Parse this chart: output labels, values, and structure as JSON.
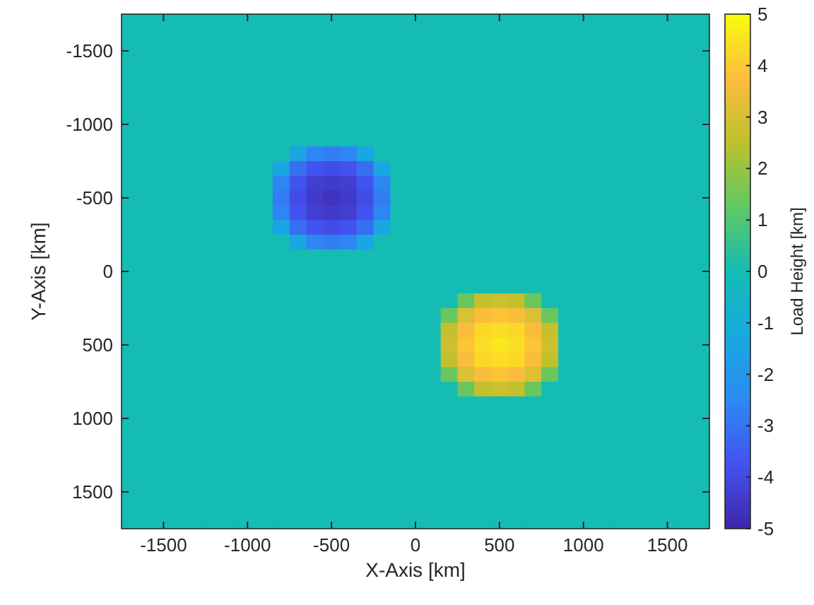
{
  "chart_data": {
    "type": "heatmap",
    "xlabel": "X-Axis [km]",
    "ylabel": "Y-Axis [km]",
    "clabel": "Load Height [km]",
    "x": [
      -1700,
      -1600,
      -1500,
      -1400,
      -1300,
      -1200,
      -1100,
      -1000,
      -900,
      -800,
      -700,
      -600,
      -500,
      -400,
      -300,
      -200,
      -100,
      0,
      100,
      200,
      300,
      400,
      500,
      600,
      700,
      800,
      900,
      1000,
      1100,
      1200,
      1300,
      1400,
      1500,
      1600,
      1700
    ],
    "y": [
      -1700,
      -1600,
      -1500,
      -1400,
      -1300,
      -1200,
      -1100,
      -1000,
      -900,
      -800,
      -700,
      -600,
      -500,
      -400,
      -300,
      -200,
      -100,
      0,
      100,
      200,
      300,
      400,
      500,
      600,
      700,
      800,
      900,
      1000,
      1100,
      1200,
      1300,
      1400,
      1500,
      1600,
      1700
    ],
    "xlim": [
      -1750,
      1750
    ],
    "ylim": [
      1750,
      -1750
    ],
    "xticks": [
      -1500,
      -1000,
      -500,
      0,
      500,
      1000,
      1500
    ],
    "yticks": [
      -1500,
      -1000,
      -500,
      0,
      500,
      1000,
      1500
    ],
    "clim": [
      -5,
      5
    ],
    "cticks": [
      -5,
      -4,
      -3,
      -2,
      -1,
      0,
      1,
      2,
      3,
      4,
      5
    ],
    "cells": [
      [
        0,
        0,
        0,
        0,
        0,
        0,
        0,
        0,
        0,
        0,
        0,
        0,
        0,
        0,
        0,
        0,
        0,
        0,
        0,
        0,
        0,
        0,
        0,
        0,
        0,
        0,
        0,
        0,
        0,
        0,
        0,
        0,
        0,
        0,
        0
      ],
      [
        0,
        0,
        0,
        0,
        0,
        0,
        0,
        0,
        0,
        0,
        0,
        0,
        0,
        0,
        0,
        0,
        0,
        0,
        0,
        0,
        0,
        0,
        0,
        0,
        0,
        0,
        0,
        0,
        0,
        0,
        0,
        0,
        0,
        0,
        0
      ],
      [
        0,
        0,
        0,
        0,
        0,
        0,
        0,
        0,
        0,
        0,
        0,
        0,
        0,
        0,
        0,
        0,
        0,
        0,
        0,
        0,
        0,
        0,
        0,
        0,
        0,
        0,
        0,
        0,
        0,
        0,
        0,
        0,
        0,
        0,
        0
      ],
      [
        0,
        0,
        0,
        0,
        0,
        0,
        0,
        0,
        0,
        0,
        0,
        0,
        0,
        0,
        0,
        0,
        0,
        0,
        0,
        0,
        0,
        0,
        0,
        0,
        0,
        0,
        0,
        0,
        0,
        0,
        0,
        0,
        0,
        0,
        0
      ],
      [
        0,
        0,
        0,
        0,
        0,
        0,
        0,
        0,
        0,
        0,
        0,
        0,
        0,
        0,
        0,
        0,
        0,
        0,
        0,
        0,
        0,
        0,
        0,
        0,
        0,
        0,
        0,
        0,
        0,
        0,
        0,
        0,
        0,
        0,
        0
      ],
      [
        0,
        0,
        0,
        0,
        0,
        0,
        0,
        0,
        0,
        0,
        0,
        0,
        0,
        0,
        0,
        0,
        0,
        0,
        0,
        0,
        0,
        0,
        0,
        0,
        0,
        0,
        0,
        0,
        0,
        0,
        0,
        0,
        0,
        0,
        0
      ],
      [
        0,
        0,
        0,
        0,
        0,
        0,
        0,
        0,
        0,
        0,
        0,
        0,
        0,
        0,
        0,
        0,
        0,
        0,
        0,
        0,
        0,
        0,
        0,
        0,
        0,
        0,
        0,
        0,
        0,
        0,
        0,
        0,
        0,
        0,
        0
      ],
      [
        0,
        0,
        0,
        0,
        0,
        0,
        0,
        0,
        0,
        0,
        0,
        0,
        0,
        0,
        0,
        0,
        0,
        0,
        0,
        0,
        0,
        0,
        0,
        0,
        0,
        0,
        0,
        0,
        0,
        0,
        0,
        0,
        0,
        0,
        0
      ],
      [
        0,
        0,
        0,
        0,
        0,
        0,
        0,
        0,
        0,
        0,
        0,
        0,
        0,
        0,
        0,
        0,
        0,
        0,
        0,
        0,
        0,
        0,
        0,
        0,
        0,
        0,
        0,
        0,
        0,
        0,
        0,
        0,
        0,
        0,
        0
      ],
      [
        0,
        0,
        0,
        0,
        0,
        0,
        0,
        0,
        0,
        0,
        -1.4,
        -2.6,
        -2.8,
        -2.6,
        -1.4,
        0,
        0,
        0,
        0,
        0,
        0,
        0,
        0,
        0,
        0,
        0,
        0,
        0,
        0,
        0,
        0,
        0,
        0,
        0,
        0
      ],
      [
        0,
        0,
        0,
        0,
        0,
        0,
        0,
        0,
        0,
        -1.4,
        -3.1,
        -3.7,
        -3.9,
        -3.7,
        -3.1,
        -1.4,
        0,
        0,
        0,
        0,
        0,
        0,
        0,
        0,
        0,
        0,
        0,
        0,
        0,
        0,
        0,
        0,
        0,
        0,
        0
      ],
      [
        0,
        0,
        0,
        0,
        0,
        0,
        0,
        0,
        0,
        -2.6,
        -3.7,
        -4.3,
        -4.4,
        -4.3,
        -3.7,
        -2.6,
        0,
        0,
        0,
        0,
        0,
        0,
        0,
        0,
        0,
        0,
        0,
        0,
        0,
        0,
        0,
        0,
        0,
        0,
        0
      ],
      [
        0,
        0,
        0,
        0,
        0,
        0,
        0,
        0,
        0,
        -2.8,
        -3.9,
        -4.4,
        -4.6,
        -4.4,
        -3.9,
        -2.8,
        0,
        0,
        0,
        0,
        0,
        0,
        0,
        0,
        0,
        0,
        0,
        0,
        0,
        0,
        0,
        0,
        0,
        0,
        0
      ],
      [
        0,
        0,
        0,
        0,
        0,
        0,
        0,
        0,
        0,
        -2.6,
        -3.7,
        -4.3,
        -4.4,
        -4.3,
        -3.7,
        -2.6,
        0,
        0,
        0,
        0,
        0,
        0,
        0,
        0,
        0,
        0,
        0,
        0,
        0,
        0,
        0,
        0,
        0,
        0,
        0
      ],
      [
        0,
        0,
        0,
        0,
        0,
        0,
        0,
        0,
        0,
        -1.4,
        -3.1,
        -3.7,
        -3.9,
        -3.7,
        -3.1,
        -1.4,
        0,
        0,
        0,
        0,
        0,
        0,
        0,
        0,
        0,
        0,
        0,
        0,
        0,
        0,
        0,
        0,
        0,
        0,
        0
      ],
      [
        0,
        0,
        0,
        0,
        0,
        0,
        0,
        0,
        0,
        0,
        -1.4,
        -2.6,
        -2.8,
        -2.6,
        -1.4,
        0,
        0,
        0,
        0,
        0,
        0,
        0,
        0,
        0,
        0,
        0,
        0,
        0,
        0,
        0,
        0,
        0,
        0,
        0,
        0
      ],
      [
        0,
        0,
        0,
        0,
        0,
        0,
        0,
        0,
        0,
        0,
        0,
        0,
        0,
        0,
        0,
        0,
        0,
        0,
        0,
        0,
        0,
        0,
        0,
        0,
        0,
        0,
        0,
        0,
        0,
        0,
        0,
        0,
        0,
        0,
        0
      ],
      [
        0,
        0,
        0,
        0,
        0,
        0,
        0,
        0,
        0,
        0,
        0,
        0,
        0,
        0,
        0,
        0,
        0,
        0,
        0,
        0,
        0,
        0,
        0,
        0,
        0,
        0,
        0,
        0,
        0,
        0,
        0,
        0,
        0,
        0,
        0
      ],
      [
        0,
        0,
        0,
        0,
        0,
        0,
        0,
        0,
        0,
        0,
        0,
        0,
        0,
        0,
        0,
        0,
        0,
        0,
        0,
        0,
        0,
        0,
        0,
        0,
        0,
        0,
        0,
        0,
        0,
        0,
        0,
        0,
        0,
        0,
        0
      ],
      [
        0,
        0,
        0,
        0,
        0,
        0,
        0,
        0,
        0,
        0,
        0,
        0,
        0,
        0,
        0,
        0,
        0,
        0,
        0,
        0,
        1.4,
        2.6,
        2.8,
        2.6,
        1.4,
        0,
        0,
        0,
        0,
        0,
        0,
        0,
        0,
        0,
        0
      ],
      [
        0,
        0,
        0,
        0,
        0,
        0,
        0,
        0,
        0,
        0,
        0,
        0,
        0,
        0,
        0,
        0,
        0,
        0,
        0,
        1.4,
        3.1,
        3.7,
        3.9,
        3.7,
        3.1,
        1.4,
        0,
        0,
        0,
        0,
        0,
        0,
        0,
        0,
        0
      ],
      [
        0,
        0,
        0,
        0,
        0,
        0,
        0,
        0,
        0,
        0,
        0,
        0,
        0,
        0,
        0,
        0,
        0,
        0,
        0,
        2.6,
        3.7,
        4.3,
        4.4,
        4.3,
        3.7,
        2.6,
        0,
        0,
        0,
        0,
        0,
        0,
        0,
        0,
        0
      ],
      [
        0,
        0,
        0,
        0,
        0,
        0,
        0,
        0,
        0,
        0,
        0,
        0,
        0,
        0,
        0,
        0,
        0,
        0,
        0,
        2.8,
        3.9,
        4.4,
        4.6,
        4.4,
        3.9,
        2.8,
        0,
        0,
        0,
        0,
        0,
        0,
        0,
        0,
        0
      ],
      [
        0,
        0,
        0,
        0,
        0,
        0,
        0,
        0,
        0,
        0,
        0,
        0,
        0,
        0,
        0,
        0,
        0,
        0,
        0,
        2.6,
        3.7,
        4.3,
        4.4,
        4.3,
        3.7,
        2.6,
        0,
        0,
        0,
        0,
        0,
        0,
        0,
        0,
        0
      ],
      [
        0,
        0,
        0,
        0,
        0,
        0,
        0,
        0,
        0,
        0,
        0,
        0,
        0,
        0,
        0,
        0,
        0,
        0,
        0,
        1.4,
        3.1,
        3.7,
        3.9,
        3.7,
        3.1,
        1.4,
        0,
        0,
        0,
        0,
        0,
        0,
        0,
        0,
        0
      ],
      [
        0,
        0,
        0,
        0,
        0,
        0,
        0,
        0,
        0,
        0,
        0,
        0,
        0,
        0,
        0,
        0,
        0,
        0,
        0,
        0,
        1.4,
        2.6,
        2.8,
        2.6,
        1.4,
        0,
        0,
        0,
        0,
        0,
        0,
        0,
        0,
        0,
        0
      ],
      [
        0,
        0,
        0,
        0,
        0,
        0,
        0,
        0,
        0,
        0,
        0,
        0,
        0,
        0,
        0,
        0,
        0,
        0,
        0,
        0,
        0,
        0,
        0,
        0,
        0,
        0,
        0,
        0,
        0,
        0,
        0,
        0,
        0,
        0,
        0
      ],
      [
        0,
        0,
        0,
        0,
        0,
        0,
        0,
        0,
        0,
        0,
        0,
        0,
        0,
        0,
        0,
        0,
        0,
        0,
        0,
        0,
        0,
        0,
        0,
        0,
        0,
        0,
        0,
        0,
        0,
        0,
        0,
        0,
        0,
        0,
        0
      ],
      [
        0,
        0,
        0,
        0,
        0,
        0,
        0,
        0,
        0,
        0,
        0,
        0,
        0,
        0,
        0,
        0,
        0,
        0,
        0,
        0,
        0,
        0,
        0,
        0,
        0,
        0,
        0,
        0,
        0,
        0,
        0,
        0,
        0,
        0,
        0
      ],
      [
        0,
        0,
        0,
        0,
        0,
        0,
        0,
        0,
        0,
        0,
        0,
        0,
        0,
        0,
        0,
        0,
        0,
        0,
        0,
        0,
        0,
        0,
        0,
        0,
        0,
        0,
        0,
        0,
        0,
        0,
        0,
        0,
        0,
        0,
        0
      ],
      [
        0,
        0,
        0,
        0,
        0,
        0,
        0,
        0,
        0,
        0,
        0,
        0,
        0,
        0,
        0,
        0,
        0,
        0,
        0,
        0,
        0,
        0,
        0,
        0,
        0,
        0,
        0,
        0,
        0,
        0,
        0,
        0,
        0,
        0,
        0
      ],
      [
        0,
        0,
        0,
        0,
        0,
        0,
        0,
        0,
        0,
        0,
        0,
        0,
        0,
        0,
        0,
        0,
        0,
        0,
        0,
        0,
        0,
        0,
        0,
        0,
        0,
        0,
        0,
        0,
        0,
        0,
        0,
        0,
        0,
        0,
        0
      ],
      [
        0,
        0,
        0,
        0,
        0,
        0,
        0,
        0,
        0,
        0,
        0,
        0,
        0,
        0,
        0,
        0,
        0,
        0,
        0,
        0,
        0,
        0,
        0,
        0,
        0,
        0,
        0,
        0,
        0,
        0,
        0,
        0,
        0,
        0,
        0
      ],
      [
        0,
        0,
        0,
        0,
        0,
        0,
        0,
        0,
        0,
        0,
        0,
        0,
        0,
        0,
        0,
        0,
        0,
        0,
        0,
        0,
        0,
        0,
        0,
        0,
        0,
        0,
        0,
        0,
        0,
        0,
        0,
        0,
        0,
        0,
        0
      ],
      [
        0,
        0,
        0,
        0,
        0,
        0,
        0,
        0,
        0,
        0,
        0,
        0,
        0,
        0,
        0,
        0,
        0,
        0,
        0,
        0,
        0,
        0,
        0,
        0,
        0,
        0,
        0,
        0,
        0,
        0,
        0,
        0,
        0,
        0,
        0
      ]
    ]
  }
}
